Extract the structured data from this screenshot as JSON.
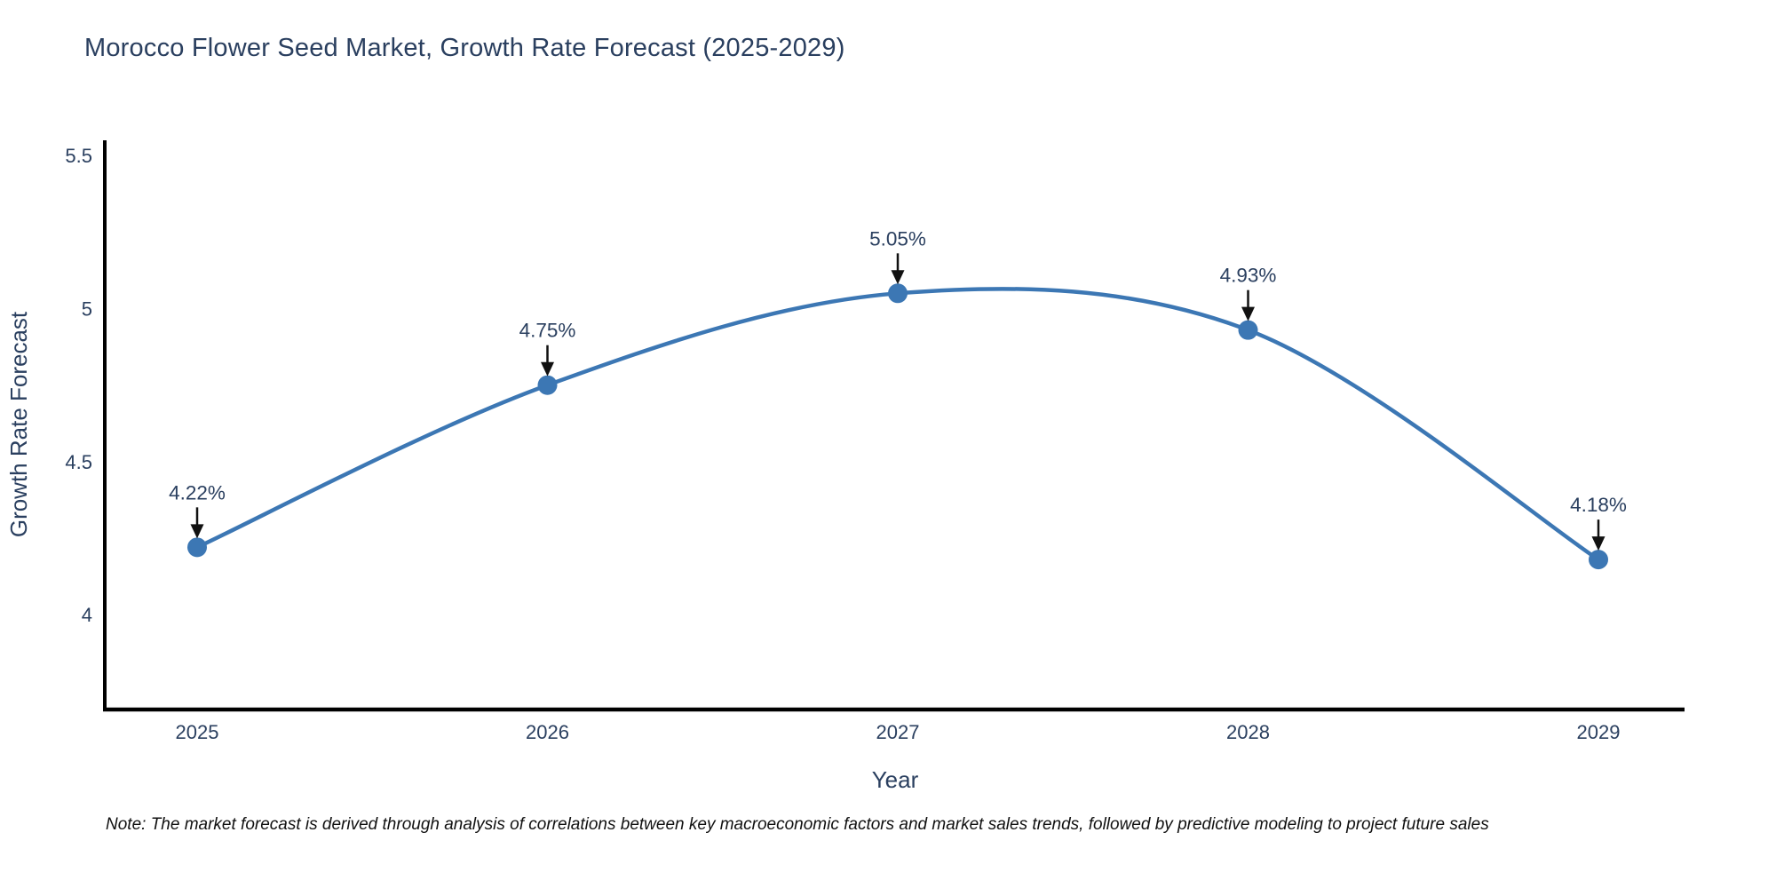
{
  "chart_data": {
    "type": "line",
    "line_shape": "spline",
    "title": "Morocco Flower Seed Market, Growth Rate Forecast (2025-2029)",
    "xlabel": "Year",
    "ylabel": "Growth Rate Forecast",
    "categories": [
      "2025",
      "2026",
      "2027",
      "2028",
      "2029"
    ],
    "values": [
      4.22,
      4.75,
      5.05,
      4.93,
      4.18
    ],
    "point_labels": [
      "4.22%",
      "4.75%",
      "5.05%",
      "4.93%",
      "4.18%"
    ],
    "yticks": [
      5.5,
      5,
      4.5,
      4
    ],
    "ytick_labels": [
      "5.5",
      "5",
      "4.5",
      "4"
    ],
    "ylim": [
      3.69,
      5.55
    ],
    "grid": false,
    "legend": false,
    "note": "Note: The market forecast is derived through analysis of correlations between key macroeconomic factors and market sales trends, followed by predictive modeling to project future sales",
    "colors": {
      "line": "#3c77b4",
      "marker": "#3c77b4",
      "arrow": "#111111",
      "label_text": "#2a3f5f",
      "tick_text": "#2a3f5f",
      "axis_line": "#000000"
    }
  }
}
